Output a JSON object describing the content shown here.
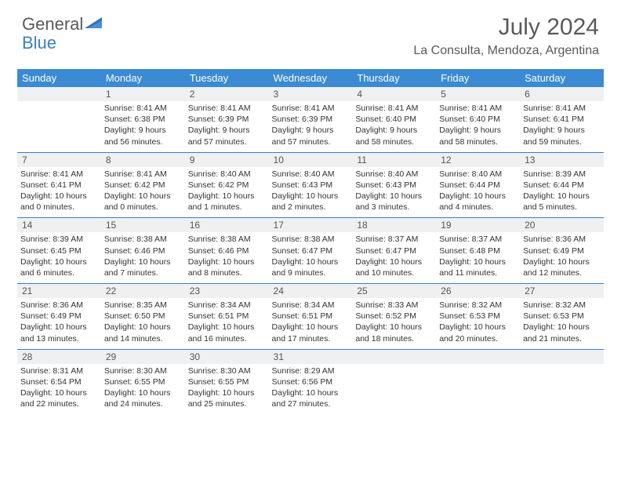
{
  "brand": {
    "word1": "General",
    "word2": "Blue"
  },
  "title": "July 2024",
  "location": "La Consulta, Mendoza, Argentina",
  "colors": {
    "header_bg": "#3b8bd4",
    "accent": "#3b7fc4",
    "daynum_bg": "#eef0f2",
    "text": "#333333",
    "muted": "#5a5a5a"
  },
  "day_headers": [
    "Sunday",
    "Monday",
    "Tuesday",
    "Wednesday",
    "Thursday",
    "Friday",
    "Saturday"
  ],
  "weeks": [
    [
      null,
      {
        "n": "1",
        "sr": "8:41 AM",
        "ss": "6:38 PM",
        "dh": "9",
        "dm": "56"
      },
      {
        "n": "2",
        "sr": "8:41 AM",
        "ss": "6:39 PM",
        "dh": "9",
        "dm": "57"
      },
      {
        "n": "3",
        "sr": "8:41 AM",
        "ss": "6:39 PM",
        "dh": "9",
        "dm": "57"
      },
      {
        "n": "4",
        "sr": "8:41 AM",
        "ss": "6:40 PM",
        "dh": "9",
        "dm": "58"
      },
      {
        "n": "5",
        "sr": "8:41 AM",
        "ss": "6:40 PM",
        "dh": "9",
        "dm": "58"
      },
      {
        "n": "6",
        "sr": "8:41 AM",
        "ss": "6:41 PM",
        "dh": "9",
        "dm": "59"
      }
    ],
    [
      {
        "n": "7",
        "sr": "8:41 AM",
        "ss": "6:41 PM",
        "dh": "10",
        "dm": "0"
      },
      {
        "n": "8",
        "sr": "8:41 AM",
        "ss": "6:42 PM",
        "dh": "10",
        "dm": "0"
      },
      {
        "n": "9",
        "sr": "8:40 AM",
        "ss": "6:42 PM",
        "dh": "10",
        "dm": "1"
      },
      {
        "n": "10",
        "sr": "8:40 AM",
        "ss": "6:43 PM",
        "dh": "10",
        "dm": "2"
      },
      {
        "n": "11",
        "sr": "8:40 AM",
        "ss": "6:43 PM",
        "dh": "10",
        "dm": "3"
      },
      {
        "n": "12",
        "sr": "8:40 AM",
        "ss": "6:44 PM",
        "dh": "10",
        "dm": "4"
      },
      {
        "n": "13",
        "sr": "8:39 AM",
        "ss": "6:44 PM",
        "dh": "10",
        "dm": "5"
      }
    ],
    [
      {
        "n": "14",
        "sr": "8:39 AM",
        "ss": "6:45 PM",
        "dh": "10",
        "dm": "6"
      },
      {
        "n": "15",
        "sr": "8:38 AM",
        "ss": "6:46 PM",
        "dh": "10",
        "dm": "7"
      },
      {
        "n": "16",
        "sr": "8:38 AM",
        "ss": "6:46 PM",
        "dh": "10",
        "dm": "8"
      },
      {
        "n": "17",
        "sr": "8:38 AM",
        "ss": "6:47 PM",
        "dh": "10",
        "dm": "9"
      },
      {
        "n": "18",
        "sr": "8:37 AM",
        "ss": "6:47 PM",
        "dh": "10",
        "dm": "10"
      },
      {
        "n": "19",
        "sr": "8:37 AM",
        "ss": "6:48 PM",
        "dh": "10",
        "dm": "11"
      },
      {
        "n": "20",
        "sr": "8:36 AM",
        "ss": "6:49 PM",
        "dh": "10",
        "dm": "12"
      }
    ],
    [
      {
        "n": "21",
        "sr": "8:36 AM",
        "ss": "6:49 PM",
        "dh": "10",
        "dm": "13"
      },
      {
        "n": "22",
        "sr": "8:35 AM",
        "ss": "6:50 PM",
        "dh": "10",
        "dm": "14"
      },
      {
        "n": "23",
        "sr": "8:34 AM",
        "ss": "6:51 PM",
        "dh": "10",
        "dm": "16"
      },
      {
        "n": "24",
        "sr": "8:34 AM",
        "ss": "6:51 PM",
        "dh": "10",
        "dm": "17"
      },
      {
        "n": "25",
        "sr": "8:33 AM",
        "ss": "6:52 PM",
        "dh": "10",
        "dm": "18"
      },
      {
        "n": "26",
        "sr": "8:32 AM",
        "ss": "6:53 PM",
        "dh": "10",
        "dm": "20"
      },
      {
        "n": "27",
        "sr": "8:32 AM",
        "ss": "6:53 PM",
        "dh": "10",
        "dm": "21"
      }
    ],
    [
      {
        "n": "28",
        "sr": "8:31 AM",
        "ss": "6:54 PM",
        "dh": "10",
        "dm": "22"
      },
      {
        "n": "29",
        "sr": "8:30 AM",
        "ss": "6:55 PM",
        "dh": "10",
        "dm": "24"
      },
      {
        "n": "30",
        "sr": "8:30 AM",
        "ss": "6:55 PM",
        "dh": "10",
        "dm": "25"
      },
      {
        "n": "31",
        "sr": "8:29 AM",
        "ss": "6:56 PM",
        "dh": "10",
        "dm": "27"
      },
      null,
      null,
      null
    ]
  ],
  "labels": {
    "sunrise": "Sunrise:",
    "sunset": "Sunset:",
    "daylight": "Daylight:",
    "hours": "hours",
    "and": "and",
    "minutes": "minutes."
  }
}
